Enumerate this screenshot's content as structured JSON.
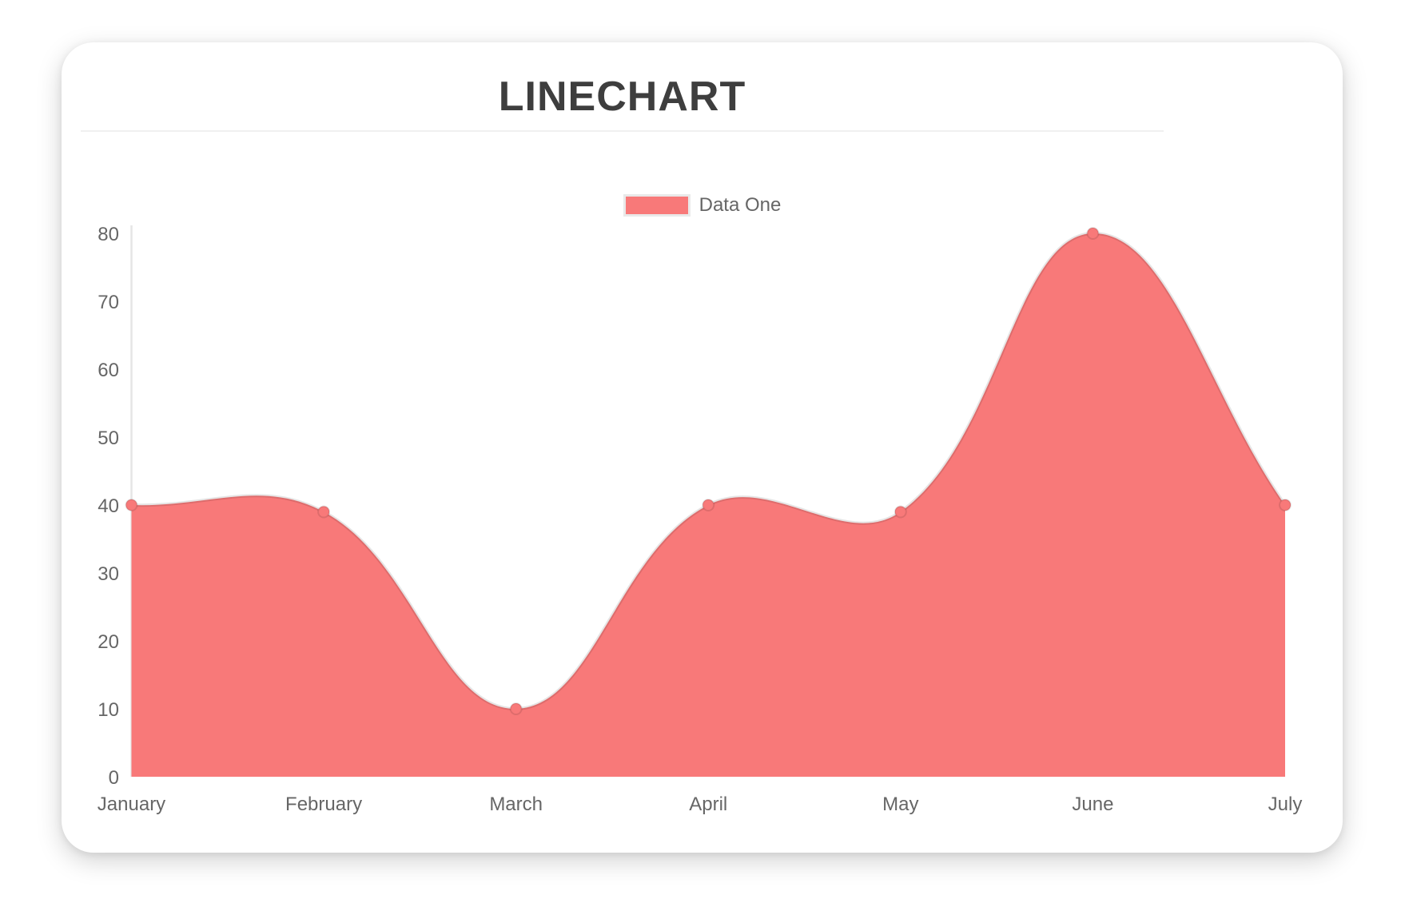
{
  "header": {
    "title": "LINECHART"
  },
  "legend": {
    "label": "Data One"
  },
  "chart_data": {
    "type": "area",
    "title": "LINECHART",
    "categories": [
      "January",
      "February",
      "March",
      "April",
      "May",
      "June",
      "July"
    ],
    "series": [
      {
        "name": "Data One",
        "values": [
          40,
          39,
          10,
          40,
          39,
          80,
          40
        ],
        "color": "#f87979",
        "line_color": "rgba(0,0,0,0.1)"
      }
    ],
    "y_ticks": [
      0,
      10,
      20,
      30,
      40,
      50,
      60,
      70,
      80
    ],
    "ylim": [
      0,
      80
    ],
    "xlabel": "",
    "ylabel": "",
    "grid": false,
    "legend_position": "top",
    "curve_tension": 0.4,
    "axis_color": "rgba(0,0,0,0.1)",
    "tick_color": "#666666",
    "point_radius": 7
  }
}
